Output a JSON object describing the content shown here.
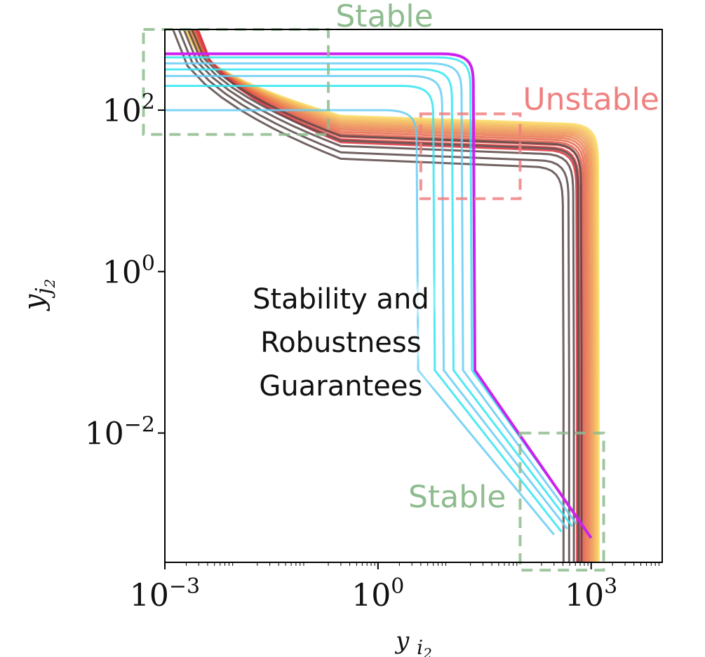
{
  "chart_data": {
    "type": "line",
    "xscale": "log",
    "yscale": "log",
    "xlim": [
      0.001,
      10000
    ],
    "ylim": [
      0.00025,
      1000
    ],
    "xticks": [
      {
        "value": 0.001,
        "base": "10",
        "exp": "−3"
      },
      {
        "value": 1,
        "base": "10",
        "exp": "0"
      },
      {
        "value": 1000,
        "base": "10",
        "exp": "3"
      }
    ],
    "yticks": [
      {
        "value": 0.01,
        "base": "10",
        "exp": "−2"
      },
      {
        "value": 1,
        "base": "10",
        "exp": "0"
      },
      {
        "value": 100,
        "base": "10",
        "exp": "2"
      }
    ],
    "xlabel": {
      "main": "y",
      "sub": "i",
      "subsub": "2"
    },
    "ylabel": {
      "main": "y",
      "sub": "j",
      "subsub": "2"
    },
    "grid": false,
    "legend": "none",
    "callout": [
      "Stability and",
      "Robustness",
      "Guarantees"
    ],
    "regions": [
      {
        "label": "Stable",
        "color": "#8fbc8f",
        "x": [
          0.0005,
          0.2
        ],
        "y": [
          50,
          1000
        ],
        "label_pos": "top"
      },
      {
        "label": "Unstable",
        "color": "#f08080",
        "x": [
          4,
          100
        ],
        "y": [
          8,
          90
        ],
        "label_pos": "right"
      },
      {
        "label": "Stable",
        "color": "#8fbc8f",
        "x": [
          100,
          1500
        ],
        "y": [
          0.0002,
          0.01
        ],
        "label_pos": "left"
      }
    ],
    "families": {
      "cyan": {
        "plateau": [
          450,
          380,
          320,
          265,
          200,
          100
        ],
        "knee": [
          20,
          15,
          11,
          8,
          6,
          3.5
        ]
      },
      "gray": {
        "plateau": [
          25,
          30,
          36,
          42,
          48
        ],
        "knee": [
          400,
          480,
          560,
          650,
          720
        ]
      },
      "warm": {
        "count": 14,
        "plateau_range": [
          40,
          85
        ],
        "knee_range": [
          620,
          1250
        ]
      },
      "highlight": {
        "plateau": 500,
        "knee": 22,
        "tail": [
          1000,
          0.0005
        ],
        "color": "#cc22ee"
      }
    }
  }
}
